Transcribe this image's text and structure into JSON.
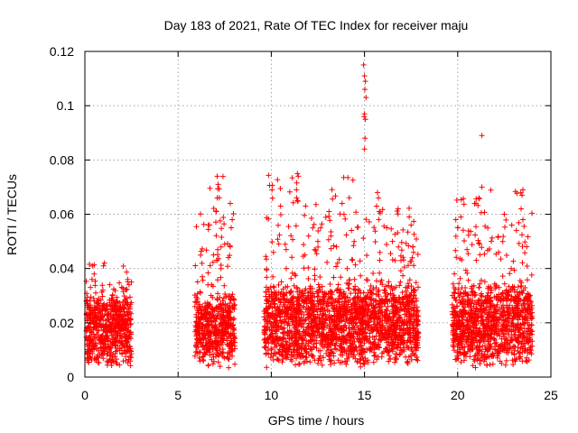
{
  "chart_data": {
    "type": "scatter",
    "title": "Day 183 of 2021, Rate Of TEC Index for receiver maju",
    "xlabel": "GPS time / hours",
    "ylabel": "ROTI / TECUs",
    "xlim": [
      0,
      25
    ],
    "ylim": [
      0,
      0.12
    ],
    "x_ticks": [
      0,
      5,
      10,
      15,
      20,
      25
    ],
    "x_tick_labels": [
      "0",
      "5",
      "10",
      "15",
      "20",
      "25"
    ],
    "y_ticks": [
      0,
      0.02,
      0.04,
      0.06,
      0.08,
      0.1,
      0.12
    ],
    "y_tick_labels": [
      "0",
      "0.02",
      "0.04",
      "0.06",
      "0.08",
      "0.1",
      "0.12"
    ],
    "grid": true,
    "marker": "plus",
    "color": "#ff0000",
    "series": [
      {
        "name": "ROTI",
        "clusters": [
          {
            "x_range": [
              0.05,
              2.5
            ],
            "y_core": [
              0.003,
              0.031
            ],
            "y_max": 0.042,
            "density": 1.0
          },
          {
            "x_range": [
              5.9,
              8.05
            ],
            "y_core": [
              0.003,
              0.031
            ],
            "y_max": 0.074,
            "density": 1.0
          },
          {
            "x_range": [
              9.6,
              14.9
            ],
            "y_core": [
              0.003,
              0.035
            ],
            "y_max": 0.075,
            "density": 1.0
          },
          {
            "x_range": [
              14.9,
              17.9
            ],
            "y_core": [
              0.004,
              0.035
            ],
            "y_max": 0.063,
            "density": 1.0
          },
          {
            "x_range": [
              19.7,
              24.0
            ],
            "y_core": [
              0.003,
              0.035
            ],
            "y_max": 0.069,
            "density": 1.0
          }
        ],
        "outliers": [
          [
            14.95,
            0.115
          ],
          [
            15.0,
            0.111
          ],
          [
            15.05,
            0.109
          ],
          [
            15.02,
            0.106
          ],
          [
            15.08,
            0.103
          ],
          [
            15.0,
            0.097
          ],
          [
            15.05,
            0.095
          ],
          [
            14.98,
            0.096
          ],
          [
            15.03,
            0.088
          ],
          [
            15.0,
            0.084
          ],
          [
            21.3,
            0.089
          ],
          [
            21.3,
            0.07
          ],
          [
            11.4,
            0.075
          ],
          [
            11.45,
            0.074
          ],
          [
            11.35,
            0.069
          ],
          [
            11.4,
            0.065
          ],
          [
            7.1,
            0.074
          ],
          [
            7.15,
            0.071
          ],
          [
            7.1,
            0.066
          ],
          [
            7.05,
            0.061
          ],
          [
            7.8,
            0.064
          ],
          [
            10.5,
            0.063
          ],
          [
            13.8,
            0.064
          ],
          [
            13.9,
            0.06
          ],
          [
            15.7,
            0.068
          ],
          [
            15.75,
            0.066
          ],
          [
            15.65,
            0.063
          ],
          [
            15.8,
            0.061
          ],
          [
            16.8,
            0.062
          ],
          [
            17.4,
            0.059
          ],
          [
            17.5,
            0.056
          ],
          [
            23.5,
            0.069
          ],
          [
            23.45,
            0.067
          ],
          [
            23.4,
            0.062
          ],
          [
            23.5,
            0.058
          ],
          [
            19.9,
            0.058
          ],
          [
            20.0,
            0.055
          ],
          [
            22.5,
            0.06
          ],
          [
            22.9,
            0.056
          ],
          [
            1.05,
            0.042
          ],
          [
            1.0,
            0.041
          ],
          [
            0.4,
            0.041
          ],
          [
            2.3,
            0.036
          ],
          [
            0.5,
            0.038
          ],
          [
            12.0,
            0.052
          ],
          [
            12.5,
            0.05
          ],
          [
            13.2,
            0.052
          ],
          [
            13.5,
            0.048
          ],
          [
            14.3,
            0.054
          ],
          [
            10.8,
            0.047
          ],
          [
            11.8,
            0.045
          ],
          [
            16.2,
            0.055
          ],
          [
            16.5,
            0.05
          ],
          [
            17.6,
            0.048
          ],
          [
            21.8,
            0.05
          ],
          [
            22.2,
            0.046
          ],
          [
            23.7,
            0.048
          ],
          [
            20.5,
            0.047
          ],
          [
            21.0,
            0.043
          ],
          [
            6.3,
            0.037
          ],
          [
            6.6,
            0.034
          ],
          [
            7.5,
            0.049
          ],
          [
            7.7,
            0.044
          ],
          [
            7.9,
            0.058
          ],
          [
            7.85,
            0.055
          ],
          [
            6.9,
            0.045
          ],
          [
            7.3,
            0.04
          ]
        ]
      }
    ]
  }
}
